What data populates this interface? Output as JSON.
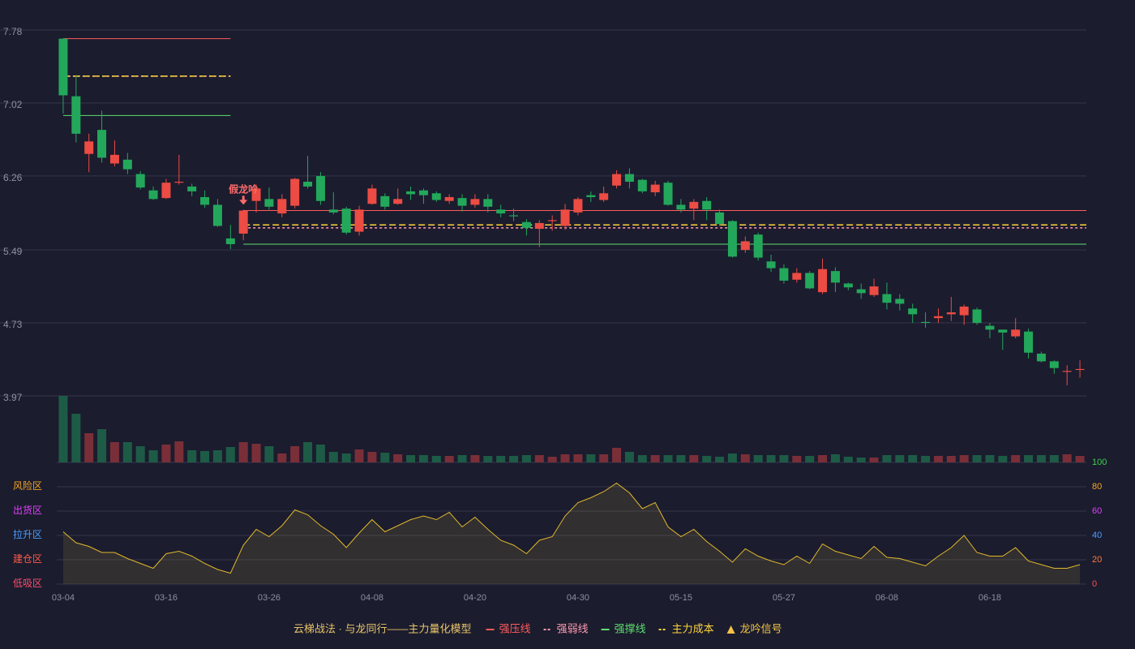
{
  "chart_data": {
    "type": "candlestick",
    "categories": [
      "03-04",
      null,
      null,
      null,
      null,
      null,
      null,
      null,
      "03-16",
      null,
      null,
      null,
      null,
      null,
      null,
      null,
      "03-26",
      null,
      null,
      null,
      null,
      null,
      null,
      null,
      "04-08",
      null,
      null,
      null,
      null,
      null,
      null,
      null,
      "04-20",
      null,
      null,
      null,
      null,
      null,
      null,
      null,
      "04-30",
      null,
      null,
      null,
      null,
      null,
      null,
      null,
      "05-15",
      null,
      null,
      null,
      null,
      null,
      null,
      null,
      "05-27",
      null,
      null,
      null,
      null,
      null,
      null,
      null,
      "06-08",
      null,
      null,
      null,
      null,
      null,
      null,
      null,
      "06-18",
      null,
      null,
      null,
      null,
      null,
      null,
      null
    ],
    "open": [
      7.69,
      7.09,
      6.49,
      6.74,
      6.39,
      6.43,
      6.28,
      6.11,
      6.03,
      6.19,
      6.15,
      6.04,
      5.96,
      5.61,
      5.66,
      6.0,
      6.02,
      5.87,
      5.95,
      6.2,
      6.26,
      5.91,
      5.92,
      5.68,
      5.97,
      6.05,
      5.97,
      6.1,
      6.11,
      6.08,
      6.0,
      6.03,
      5.96,
      6.02,
      5.91,
      5.85,
      5.78,
      5.71,
      5.79,
      5.74,
      5.88,
      6.06,
      6.01,
      6.16,
      6.28,
      6.22,
      6.09,
      6.19,
      5.96,
      5.92,
      6.0,
      5.88,
      5.79,
      5.49,
      5.65,
      5.37,
      5.3,
      5.18,
      5.25,
      5.05,
      5.27,
      5.14,
      5.08,
      5.02,
      5.03,
      4.98,
      4.88,
      4.74,
      4.78,
      4.82,
      4.81,
      4.87,
      4.7,
      4.66,
      4.59,
      4.64,
      4.41,
      4.33,
      4.22,
      4.24
    ],
    "close": [
      7.1,
      6.7,
      6.62,
      6.45,
      6.48,
      6.33,
      6.14,
      6.02,
      6.19,
      6.2,
      6.1,
      5.96,
      5.74,
      5.55,
      5.9,
      6.13,
      5.94,
      6.02,
      6.23,
      6.15,
      6.0,
      5.88,
      5.67,
      5.91,
      6.13,
      5.94,
      6.02,
      6.07,
      6.06,
      6.01,
      6.04,
      5.95,
      6.02,
      5.94,
      5.87,
      5.84,
      5.72,
      5.77,
      5.8,
      5.91,
      6.02,
      6.04,
      6.08,
      6.28,
      6.2,
      6.1,
      6.17,
      5.96,
      5.91,
      5.99,
      5.91,
      5.76,
      5.42,
      5.58,
      5.41,
      5.3,
      5.17,
      5.25,
      5.09,
      5.29,
      5.15,
      5.1,
      5.04,
      5.11,
      4.94,
      4.93,
      4.82,
      4.73,
      4.8,
      4.84,
      4.9,
      4.73,
      4.66,
      4.63,
      4.66,
      4.42,
      4.33,
      4.26,
      4.23,
      4.25
    ],
    "high": [
      7.69,
      7.31,
      6.7,
      6.94,
      6.63,
      6.5,
      6.31,
      6.15,
      6.23,
      6.48,
      6.18,
      6.11,
      6.02,
      5.75,
      5.91,
      6.17,
      6.14,
      6.07,
      6.24,
      6.47,
      6.3,
      6.09,
      5.94,
      5.95,
      6.17,
      6.08,
      6.13,
      6.15,
      6.13,
      6.1,
      6.07,
      6.07,
      6.07,
      6.07,
      5.96,
      5.92,
      5.81,
      5.8,
      5.85,
      5.97,
      6.04,
      6.1,
      6.15,
      6.32,
      6.34,
      6.23,
      6.21,
      6.21,
      6.02,
      6.02,
      6.04,
      5.91,
      5.8,
      5.63,
      5.67,
      5.44,
      5.34,
      5.3,
      5.27,
      5.4,
      5.31,
      5.15,
      5.14,
      5.19,
      5.15,
      5.03,
      4.93,
      4.84,
      4.88,
      5.0,
      4.92,
      4.89,
      4.73,
      4.66,
      4.78,
      4.67,
      4.43,
      4.34,
      4.29,
      4.34
    ],
    "low": [
      6.91,
      6.61,
      6.3,
      6.4,
      6.36,
      6.28,
      6.12,
      6.01,
      6.02,
      6.17,
      6.05,
      5.93,
      5.73,
      5.5,
      5.59,
      5.88,
      5.91,
      5.83,
      5.92,
      6.13,
      5.96,
      5.86,
      5.65,
      5.64,
      5.96,
      5.91,
      5.96,
      6.01,
      5.97,
      5.99,
      5.97,
      5.89,
      5.93,
      5.88,
      5.83,
      5.79,
      5.64,
      5.52,
      5.69,
      5.7,
      5.85,
      5.99,
      5.99,
      6.13,
      6.13,
      6.08,
      6.05,
      5.95,
      5.88,
      5.8,
      5.8,
      5.74,
      5.41,
      5.46,
      5.38,
      5.26,
      5.14,
      5.15,
      5.08,
      5.03,
      5.05,
      5.07,
      4.98,
      5.0,
      4.87,
      4.86,
      4.73,
      4.68,
      4.73,
      4.75,
      4.71,
      4.71,
      4.57,
      4.45,
      4.57,
      4.36,
      4.32,
      4.2,
      4.08,
      4.16
    ],
    "up_color": "#ec4c43",
    "down_color": "#23a85b",
    "ylim": [
      3.97,
      7.78
    ],
    "yticks": [
      3.97,
      4.73,
      5.49,
      6.26,
      7.02,
      7.78
    ],
    "grid": true,
    "volume": [
      82,
      60,
      36,
      41,
      25,
      25,
      20,
      15,
      22,
      26,
      15,
      14,
      15,
      19,
      25,
      23,
      20,
      11,
      20,
      25,
      22,
      13,
      11,
      16,
      13,
      12,
      10,
      9,
      9,
      8,
      8,
      9,
      9,
      8,
      8,
      8,
      9,
      9,
      7,
      10,
      10,
      10,
      10,
      18,
      13,
      9,
      9,
      9,
      9,
      9,
      8,
      7,
      11,
      10,
      9,
      9,
      9,
      8,
      8,
      9,
      10,
      7,
      6,
      6,
      9,
      9,
      9,
      8,
      8,
      8,
      9,
      9,
      9,
      8,
      9,
      9,
      9,
      9,
      10,
      8
    ],
    "levels": [
      {
        "name": "强压线",
        "color": "#ff5b5b",
        "dash": false,
        "segments": [
          {
            "start": 0,
            "end": 13,
            "value": 7.69
          },
          {
            "start": 14,
            "end": 79,
            "value": 5.9
          }
        ]
      },
      {
        "name": "强弱线",
        "color": "#ff9db0",
        "dash": true,
        "segments": [
          {
            "start": 0,
            "end": 13,
            "value": 7.3
          },
          {
            "start": 14,
            "end": 79,
            "value": 5.72
          }
        ]
      },
      {
        "name": "强撑线",
        "color": "#5dde6e",
        "dash": false,
        "segments": [
          {
            "start": 0,
            "end": 13,
            "value": 6.89
          },
          {
            "start": 14,
            "end": 79,
            "value": 5.55
          }
        ]
      },
      {
        "name": "主力成本",
        "color": "#ffd43b",
        "dash": true,
        "segments": [
          {
            "start": 0,
            "end": 13,
            "value": 7.3
          },
          {
            "start": 14,
            "end": 79,
            "value": 5.75
          }
        ]
      }
    ],
    "signal": {
      "name": "龙吟信号",
      "color": "#f5c542",
      "points": [
        {
          "index": 14,
          "label": "假龙吟"
        }
      ]
    },
    "legend_title": "云梯战法 · 与龙同行——主力量化模型",
    "indicator": {
      "values": [
        43,
        34,
        31,
        26,
        26,
        21,
        17,
        13,
        25,
        27,
        23,
        17,
        12,
        9,
        32,
        45,
        39,
        48,
        61,
        57,
        48,
        41,
        30,
        42,
        53,
        43,
        48,
        53,
        56,
        53,
        59,
        47,
        55,
        45,
        36,
        32,
        25,
        36,
        39,
        56,
        67,
        71,
        76,
        83,
        75,
        62,
        67,
        47,
        39,
        45,
        35,
        27,
        18,
        29,
        23,
        19,
        16,
        23,
        17,
        33,
        27,
        24,
        21,
        31,
        22,
        21,
        18,
        15,
        23,
        30,
        40,
        26,
        23,
        23,
        30,
        19,
        16,
        13,
        13,
        16
      ],
      "color": "#e0b829",
      "ylim": [
        0,
        100
      ],
      "yticks": [
        0,
        20,
        40,
        60,
        80,
        100
      ],
      "tick_colors": [
        "#ff4d4d",
        "#ff7a3d",
        "#4a9eff",
        "#e040fb",
        "#f5a623",
        "#3ecf4c"
      ],
      "zones": [
        {
          "label": "风险区",
          "value": 80,
          "color": "#f5a623"
        },
        {
          "label": "出货区",
          "value": 60,
          "color": "#e040fb"
        },
        {
          "label": "拉升区",
          "value": 40,
          "color": "#4a9eff"
        },
        {
          "label": "建仓区",
          "value": 20,
          "color": "#ff5a4a"
        },
        {
          "label": "低吸区",
          "value": 0,
          "color": "#ff4d6d"
        }
      ]
    }
  }
}
